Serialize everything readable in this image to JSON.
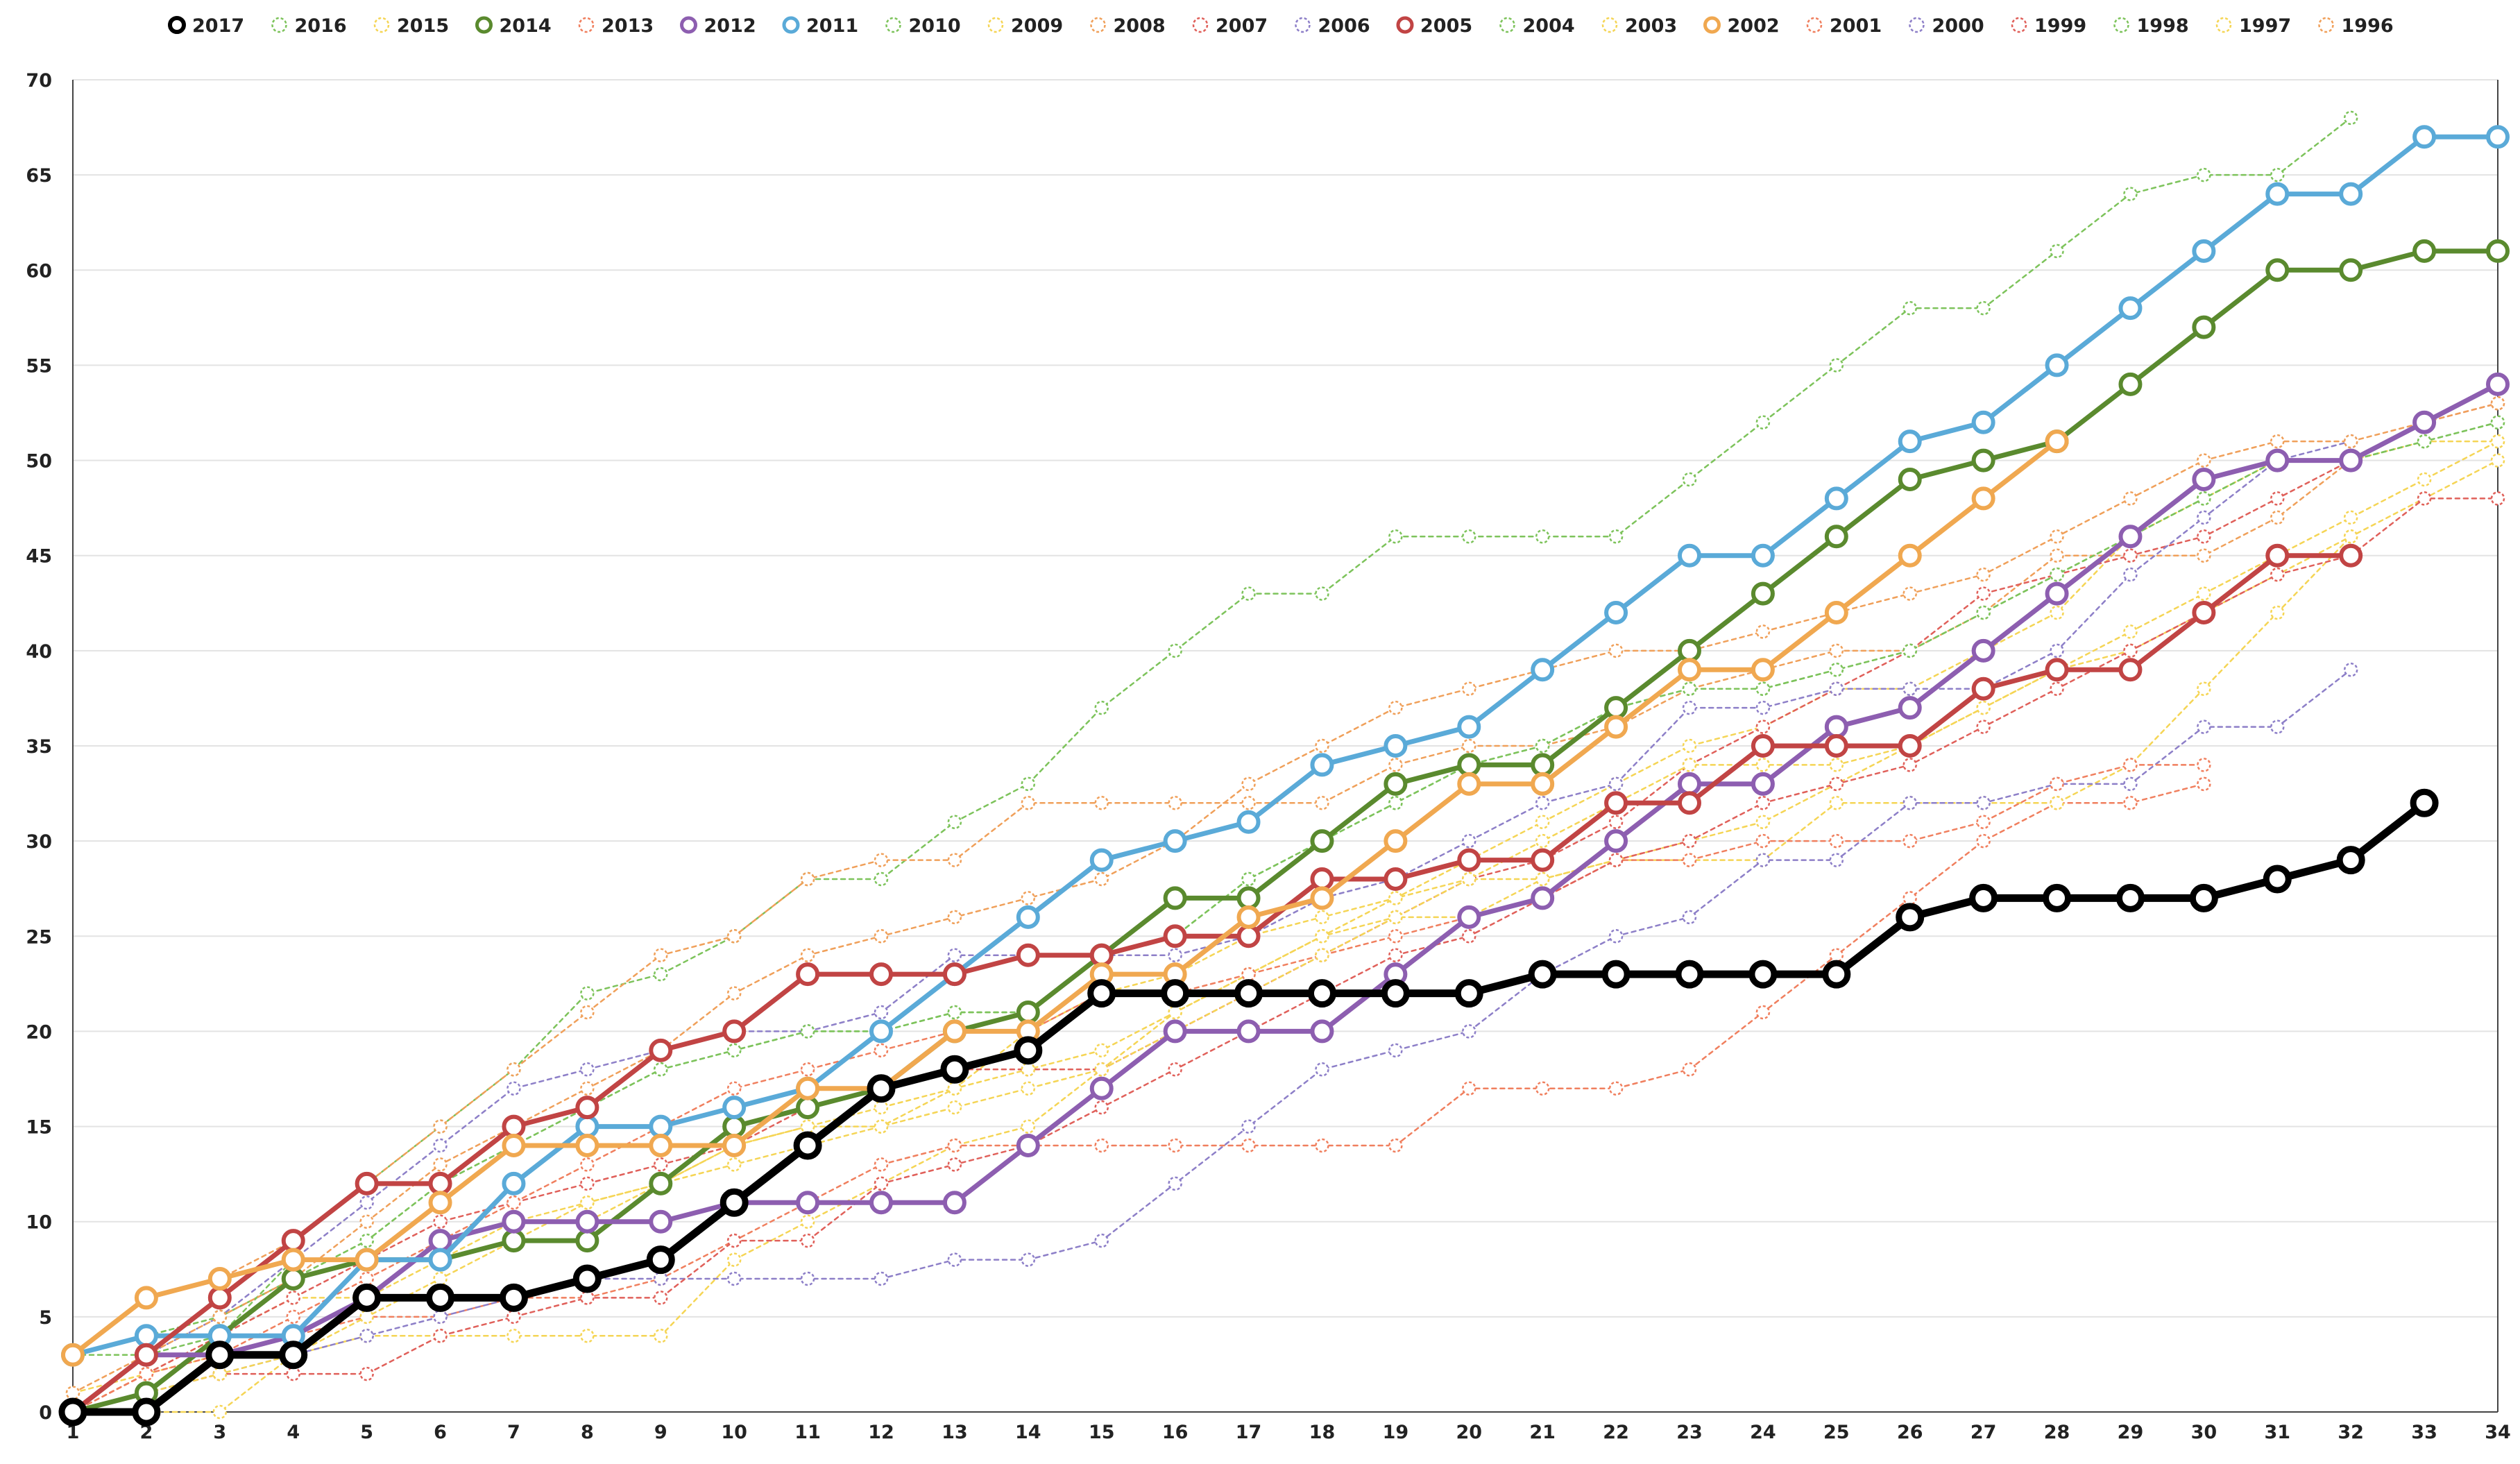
{
  "chart_data": {
    "type": "line",
    "title": "",
    "xlabel": "",
    "ylabel": "",
    "ylim": [
      0,
      70
    ],
    "xlim": [
      1,
      34
    ],
    "grid": "horizontal",
    "legend_position": "top",
    "x_ticks": [
      "1",
      "2",
      "3",
      "4",
      "5",
      "6",
      "7",
      "8",
      "9",
      "10",
      "11",
      "12",
      "13",
      "14",
      "15",
      "16",
      "17",
      "18",
      "19",
      "20",
      "21",
      "22",
      "23",
      "24",
      "25",
      "26",
      "27",
      "28",
      "29",
      "30",
      "31",
      "32",
      "33",
      "34"
    ],
    "y_ticks": [
      "0",
      "5",
      "10",
      "15",
      "20",
      "25",
      "30",
      "35",
      "40",
      "45",
      "50",
      "55",
      "60",
      "65",
      "70"
    ],
    "series": [
      {
        "name": "2017",
        "color": "#000000",
        "style": "solid-bold",
        "values": [
          0,
          0,
          3,
          3,
          6,
          6,
          6,
          7,
          8,
          11,
          14,
          17,
          18,
          19,
          22,
          22,
          22,
          22,
          22,
          22,
          23,
          23,
          23,
          23,
          23,
          26,
          27,
          27,
          27,
          27,
          28,
          29,
          32
        ]
      },
      {
        "name": "2016",
        "color": "#7dc35b",
        "style": "dotted",
        "values": [
          3,
          3,
          4,
          8,
          8,
          8,
          9,
          9,
          12,
          15,
          16,
          17,
          20,
          21,
          24,
          27,
          27,
          30,
          33,
          34,
          34,
          37,
          40,
          43,
          46,
          49,
          50,
          51,
          54,
          57,
          60,
          60,
          61,
          61
        ]
      },
      {
        "name": "2015",
        "color": "#f5d555",
        "style": "dotted",
        "values": [
          0,
          0,
          0,
          3,
          4,
          4,
          4,
          4,
          4,
          8,
          10,
          12,
          14,
          15,
          18,
          21,
          23,
          25,
          27,
          29,
          31,
          33,
          35,
          36,
          38,
          38,
          40,
          42,
          46,
          48,
          50,
          50,
          51,
          51
        ]
      },
      {
        "name": "2014",
        "color": "#5a8a2e",
        "style": "solid",
        "values": [
          0,
          1,
          4,
          7,
          8,
          8,
          9,
          9,
          12,
          15,
          16,
          17,
          20,
          21,
          24,
          27,
          27,
          30,
          33,
          34,
          34,
          37,
          40,
          43,
          46,
          49,
          50,
          51,
          54,
          57,
          60,
          60,
          61,
          61
        ]
      },
      {
        "name": "2013",
        "color": "#f07f5e",
        "style": "dotted",
        "values": [
          0,
          2,
          3,
          4,
          5,
          5,
          6,
          6,
          7,
          9,
          11,
          13,
          14,
          14,
          14,
          14,
          14,
          14,
          14,
          17,
          17,
          17,
          18,
          21,
          24,
          27,
          30,
          32,
          32,
          33
        ]
      },
      {
        "name": "2012",
        "color": "#8d5eb0",
        "style": "solid",
        "values": [
          0,
          3,
          3,
          4,
          6,
          9,
          10,
          10,
          10,
          11,
          11,
          11,
          11,
          14,
          17,
          20,
          20,
          20,
          23,
          26,
          27,
          30,
          33,
          33,
          36,
          37,
          40,
          43,
          46,
          49,
          50,
          50,
          52,
          54
        ]
      },
      {
        "name": "2011",
        "color": "#5aaad8",
        "style": "solid",
        "values": [
          3,
          4,
          4,
          4,
          8,
          8,
          12,
          15,
          15,
          16,
          17,
          20,
          23,
          26,
          29,
          30,
          31,
          34,
          35,
          36,
          39,
          42,
          45,
          45,
          48,
          51,
          52,
          55,
          58,
          61,
          64,
          64,
          67,
          67
        ]
      },
      {
        "name": "2010",
        "color": "#7dc35b",
        "style": "dotted",
        "values": [
          0,
          3,
          6,
          9,
          12,
          15,
          18,
          22,
          23,
          25,
          28,
          28,
          31,
          33,
          37,
          40,
          43,
          43,
          46,
          46,
          46,
          46,
          49,
          52,
          55,
          58,
          58,
          61,
          64,
          65,
          65,
          68
        ]
      },
      {
        "name": "2009",
        "color": "#f5d555",
        "style": "dotted",
        "values": [
          0,
          2,
          4,
          6,
          6,
          9,
          10,
          10,
          12,
          14,
          15,
          16,
          17,
          20,
          22,
          23,
          25,
          26,
          27,
          28,
          28,
          29,
          29,
          29,
          32,
          32,
          32,
          32,
          34,
          38,
          42,
          46
        ]
      },
      {
        "name": "2008",
        "color": "#f0a05a",
        "style": "dotted",
        "values": [
          3,
          6,
          7,
          9,
          12,
          15,
          18,
          21,
          24,
          25,
          28,
          29,
          29,
          32,
          32,
          32,
          32,
          32,
          34,
          35,
          35,
          36,
          38,
          39,
          40,
          40,
          42,
          45,
          45,
          45,
          47,
          50
        ]
      },
      {
        "name": "2007",
        "color": "#e0605a",
        "style": "dotted",
        "values": [
          0,
          2,
          4,
          6,
          8,
          10,
          11,
          12,
          13,
          14,
          16,
          17,
          18,
          18,
          18,
          20,
          22,
          24,
          26,
          28,
          29,
          31,
          34,
          36,
          38,
          40,
          43,
          44,
          45,
          46,
          48,
          50,
          52,
          53
        ]
      },
      {
        "name": "2006",
        "color": "#8d7fc8",
        "style": "dotted",
        "values": [
          0,
          1,
          2,
          3,
          4,
          5,
          6,
          7,
          7,
          7,
          7,
          7,
          8,
          8,
          9,
          12,
          15,
          18,
          19,
          20,
          23,
          25,
          26,
          29,
          29,
          32,
          32,
          33,
          33,
          36,
          36,
          39
        ]
      },
      {
        "name": "2005",
        "color": "#c14444",
        "style": "solid",
        "values": [
          0,
          3,
          6,
          9,
          12,
          12,
          15,
          16,
          19,
          20,
          23,
          23,
          23,
          24,
          24,
          25,
          25,
          28,
          28,
          29,
          29,
          32,
          32,
          35,
          35,
          35,
          38,
          39,
          39,
          42,
          45,
          45
        ]
      },
      {
        "name": "2004",
        "color": "#7dc35b",
        "style": "dotted",
        "values": [
          3,
          4,
          5,
          7,
          9,
          12,
          14,
          16,
          18,
          19,
          20,
          20,
          21,
          21,
          24,
          25,
          28,
          30,
          32,
          34,
          35,
          37,
          38,
          38,
          39,
          40,
          42,
          44,
          46,
          48,
          50,
          50,
          51,
          52
        ]
      },
      {
        "name": "2003",
        "color": "#f5d555",
        "style": "dotted",
        "values": [
          1,
          2,
          3,
          4,
          6,
          8,
          10,
          11,
          12,
          14,
          15,
          15,
          17,
          18,
          19,
          21,
          23,
          25,
          26,
          26,
          28,
          29,
          30,
          31,
          33,
          35,
          37,
          39,
          40,
          42,
          44,
          46,
          48,
          50
        ]
      },
      {
        "name": "2002",
        "color": "#f0a850",
        "style": "solid",
        "values": [
          3,
          6,
          7,
          8,
          8,
          11,
          14,
          14,
          14,
          14,
          17,
          17,
          20,
          20,
          23,
          23,
          26,
          27,
          30,
          33,
          33,
          36,
          39,
          39,
          42,
          45,
          48,
          51
        ]
      },
      {
        "name": "2001",
        "color": "#f07f5e",
        "style": "dotted",
        "values": [
          0,
          2,
          3,
          5,
          7,
          9,
          11,
          13,
          15,
          17,
          18,
          19,
          20,
          20,
          22,
          22,
          23,
          24,
          25,
          26,
          27,
          29,
          29,
          30,
          30,
          30,
          31,
          33,
          34,
          34
        ]
      },
      {
        "name": "2000",
        "color": "#8d7fc8",
        "style": "dotted",
        "values": [
          0,
          3,
          5,
          8,
          11,
          14,
          17,
          18,
          19,
          20,
          20,
          21,
          24,
          24,
          24,
          24,
          25,
          27,
          28,
          30,
          32,
          33,
          37,
          37,
          38,
          38,
          38,
          40,
          44,
          47,
          50,
          51
        ]
      },
      {
        "name": "1999",
        "color": "#e0605a",
        "style": "dotted",
        "values": [
          0,
          1,
          2,
          2,
          2,
          4,
          5,
          6,
          6,
          9,
          9,
          12,
          13,
          14,
          16,
          18,
          20,
          22,
          24,
          25,
          27,
          29,
          30,
          32,
          33,
          34,
          36,
          38,
          40,
          42,
          44,
          45,
          48,
          48
        ]
      },
      {
        "name": "1998",
        "color": "#7dc35b",
        "style": "dotted",
        "values": [
          3,
          4,
          5,
          7,
          9,
          12,
          14,
          16,
          18,
          19,
          20,
          20,
          21,
          21,
          24,
          25,
          28,
          30,
          32,
          34,
          35,
          37,
          38,
          38,
          39,
          40,
          42,
          44,
          46,
          48,
          50,
          50,
          51,
          52
        ]
      },
      {
        "name": "1997",
        "color": "#f5d555",
        "style": "dotted",
        "values": [
          0,
          1,
          2,
          3,
          5,
          7,
          9,
          11,
          12,
          13,
          14,
          15,
          16,
          17,
          18,
          20,
          22,
          24,
          26,
          28,
          30,
          32,
          34,
          34,
          34,
          35,
          37,
          39,
          41,
          43,
          45,
          47,
          49,
          51
        ]
      },
      {
        "name": "1996",
        "color": "#f0a05a",
        "style": "dotted",
        "values": [
          1,
          3,
          5,
          7,
          10,
          13,
          15,
          17,
          19,
          22,
          24,
          25,
          26,
          27,
          28,
          30,
          33,
          35,
          37,
          38,
          39,
          40,
          40,
          41,
          42,
          43,
          44,
          46,
          48,
          50,
          51,
          51,
          52,
          53
        ]
      }
    ]
  }
}
